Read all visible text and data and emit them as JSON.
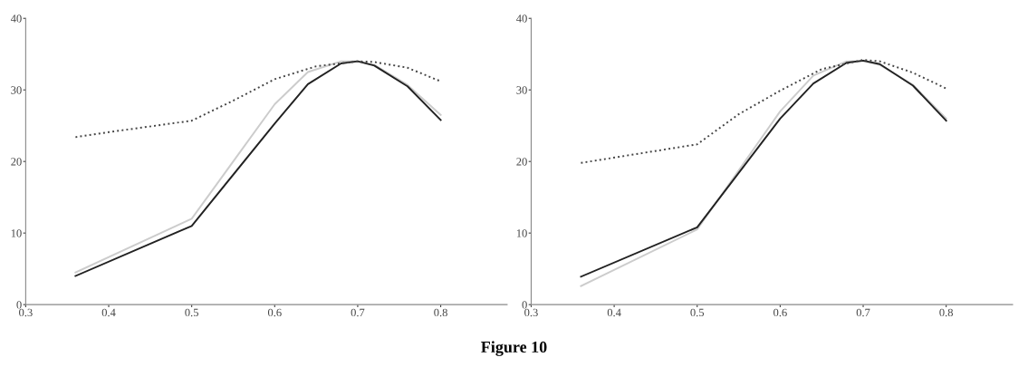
{
  "chart_data": [
    {
      "type": "line",
      "x": [
        0.36,
        0.5,
        0.6,
        0.64,
        0.68,
        0.7,
        0.72,
        0.76,
        0.8
      ],
      "xlim": [
        0.3,
        0.88
      ],
      "ylim": [
        0,
        40
      ],
      "xticks": [
        0.3,
        0.4,
        0.5,
        0.6,
        0.7,
        0.8
      ],
      "yticks": [
        0,
        10,
        20,
        30,
        40
      ],
      "grid": false,
      "marker": "none",
      "series": [
        {
          "color": "#cccccc",
          "line_style": "solid",
          "values": [
            4.5,
            12,
            28,
            32.5,
            34,
            34,
            33.5,
            30.7,
            26.5
          ]
        },
        {
          "color": "#222222",
          "line_style": "solid",
          "values": [
            4,
            11,
            25.3,
            30.8,
            33.7,
            34,
            33.4,
            30.5,
            25.8
          ]
        },
        {
          "color": "#444444",
          "line_style": "dotted",
          "x": [
            0.36,
            0.4,
            0.5,
            0.55,
            0.6,
            0.65,
            0.7,
            0.72,
            0.76,
            0.8
          ],
          "values": [
            23.4,
            24.1,
            25.7,
            28.5,
            31.5,
            33.3,
            34,
            33.9,
            33.1,
            31.2
          ]
        }
      ],
      "annotations": [
        "Figure 10"
      ]
    },
    {
      "type": "line",
      "x": [
        0.36,
        0.5,
        0.6,
        0.64,
        0.68,
        0.7,
        0.72,
        0.76,
        0.8
      ],
      "xlim": [
        0.3,
        0.88
      ],
      "ylim": [
        0,
        40
      ],
      "xticks": [
        0.3,
        0.4,
        0.5,
        0.6,
        0.7,
        0.8
      ],
      "yticks": [
        0,
        10,
        20,
        30,
        40
      ],
      "grid": false,
      "marker": "none",
      "series": [
        {
          "color": "#cccccc",
          "line_style": "solid",
          "values": [
            2.6,
            10.5,
            27,
            32,
            34,
            34,
            33.5,
            30.7,
            26
          ]
        },
        {
          "color": "#222222",
          "line_style": "solid",
          "values": [
            3.9,
            10.8,
            26,
            30.9,
            33.8,
            34.1,
            33.6,
            30.6,
            25.7
          ]
        },
        {
          "color": "#444444",
          "line_style": "dotted",
          "x": [
            0.36,
            0.5,
            0.55,
            0.6,
            0.65,
            0.7,
            0.72,
            0.76,
            0.8
          ],
          "values": [
            19.8,
            22.4,
            26.6,
            29.9,
            32.9,
            34.2,
            34,
            32.4,
            30.2
          ]
        }
      ]
    }
  ]
}
